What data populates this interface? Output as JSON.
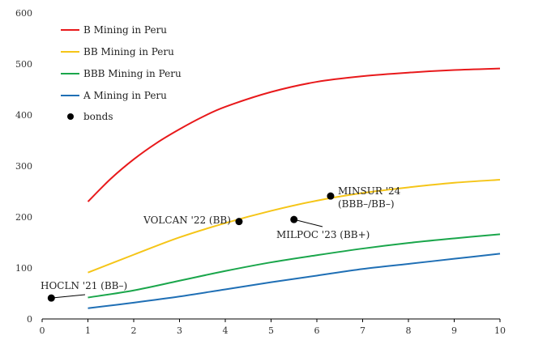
{
  "chart_data": {
    "type": "line",
    "title": "",
    "xlabel": "",
    "ylabel": "",
    "xlim": [
      0,
      10
    ],
    "ylim": [
      0,
      600
    ],
    "x_ticks": [
      0,
      1,
      2,
      3,
      4,
      5,
      6,
      7,
      8,
      9,
      10
    ],
    "y_ticks": [
      0,
      100,
      200,
      300,
      400,
      500,
      600
    ],
    "grid": "none",
    "legend_position": "top-left",
    "series": [
      {
        "name": "B Mining in Peru",
        "color": "#e8191b",
        "x": [
          1,
          1.5,
          2,
          2.5,
          3,
          3.5,
          4,
          5,
          6,
          7,
          8,
          9,
          10
        ],
        "y": [
          230,
          275,
          313,
          345,
          372,
          396,
          416,
          445,
          465,
          476,
          483,
          488,
          491
        ]
      },
      {
        "name": "BB Mining in Peru",
        "color": "#f5c518",
        "x": [
          1,
          2,
          3,
          4,
          5,
          6,
          7,
          8,
          9,
          10
        ],
        "y": [
          91,
          126,
          160,
          188,
          212,
          232,
          247,
          258,
          267,
          273
        ]
      },
      {
        "name": "BBB Mining in Peru",
        "color": "#1aa64b",
        "x": [
          1,
          2,
          3,
          4,
          5,
          6,
          7,
          8,
          9,
          10
        ],
        "y": [
          42,
          56,
          75,
          94,
          111,
          125,
          138,
          149,
          158,
          166
        ]
      },
      {
        "name": "A Mining in Peru",
        "color": "#1f6fb5",
        "x": [
          1,
          2,
          3,
          4,
          5,
          6,
          7,
          8,
          9,
          10
        ],
        "y": [
          21,
          32,
          44,
          58,
          72,
          85,
          98,
          108,
          118,
          128
        ]
      }
    ],
    "points_legend": "bonds",
    "points": [
      {
        "label": "HOCLN '21 (BB–)",
        "x": 0.2,
        "y": 41
      },
      {
        "label": "VOLCAN '22 (BB)",
        "x": 4.3,
        "y": 191
      },
      {
        "label": "MILPOC '23 (BB+)",
        "x": 5.5,
        "y": 195
      },
      {
        "label_line1": "MINSUR '24",
        "label_line2": "(BBB–/BB–)",
        "x": 6.3,
        "y": 241
      }
    ]
  }
}
